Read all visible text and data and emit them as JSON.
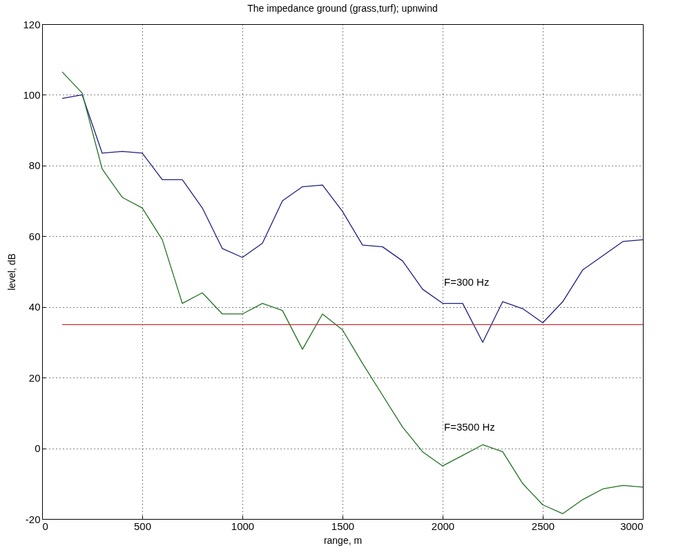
{
  "chart_data": {
    "type": "line",
    "title": "The impedance ground (grass,turf); upnwind",
    "xlabel": "range, m",
    "ylabel": "level, dB",
    "x": [
      100,
      200,
      300,
      400,
      500,
      600,
      700,
      800,
      900,
      1000,
      1100,
      1200,
      1300,
      1400,
      1500,
      1600,
      1700,
      1800,
      1900,
      2000,
      2100,
      2200,
      2300,
      2400,
      2500,
      2600,
      2700,
      2800,
      2900,
      3000
    ],
    "series": [
      {
        "color": "#1c1c80",
        "values": [
          99,
          100,
          83.5,
          84,
          83.5,
          76,
          76,
          68,
          56.5,
          54,
          58,
          70,
          74,
          74.5,
          67,
          57.5,
          57,
          53,
          45,
          41,
          41,
          30,
          41.5,
          39.5,
          35.5,
          41.5,
          50.5,
          54.5,
          58.5,
          59
        ]
      },
      {
        "color": "#207020",
        "values": [
          106.5,
          100.5,
          79,
          71,
          68,
          59,
          41,
          44,
          38,
          38,
          41,
          39,
          28,
          38,
          33.5,
          24,
          15,
          6,
          -1,
          -5,
          -2,
          1,
          -1,
          -10,
          -16,
          -18.5,
          -14.5,
          -11.5,
          -10.5,
          -11
        ]
      },
      {
        "color": "#c83030",
        "x": [
          100,
          3000
        ],
        "values": [
          35,
          35
        ]
      }
    ],
    "annotations": [
      "F=300 Hz",
      "F=3500 Hz"
    ],
    "xlim": [
      0,
      3000
    ],
    "xticks": [
      0,
      500,
      1000,
      1500,
      2000,
      2500,
      3000
    ],
    "ylim": [
      -20,
      120
    ],
    "yticks": [
      -20,
      0,
      20,
      40,
      60,
      80,
      100,
      120
    ],
    "grid": true,
    "legend": false,
    "marker": "none",
    "line_style": "solid"
  }
}
